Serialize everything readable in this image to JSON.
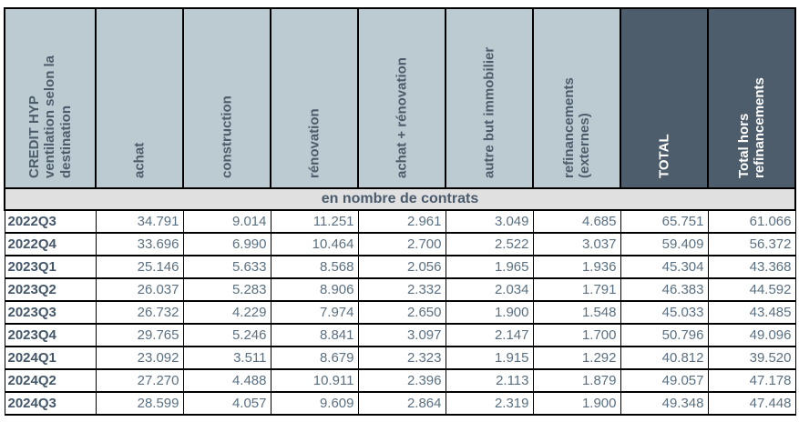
{
  "table": {
    "corner_header": "CREDIT HYP\nventilation selon la\ndestination",
    "columns": [
      {
        "label": "achat"
      },
      {
        "label": "construction"
      },
      {
        "label": "rénovation"
      },
      {
        "label": "achat + rénovation"
      },
      {
        "label": "autre but immobilier"
      },
      {
        "label": "refinancements\n(externes)"
      },
      {
        "label": "TOTAL"
      },
      {
        "label": "Total hors\nrefinancements"
      }
    ],
    "band": "en nombre de contrats",
    "rows": [
      {
        "label": "2022Q3",
        "values": [
          "34.791",
          "9.014",
          "11.251",
          "2.961",
          "3.049",
          "4.685",
          "65.751",
          "61.066"
        ]
      },
      {
        "label": "2022Q4",
        "values": [
          "33.696",
          "6.990",
          "10.464",
          "2.700",
          "2.522",
          "3.037",
          "59.409",
          "56.372"
        ]
      },
      {
        "label": "2023Q1",
        "values": [
          "25.146",
          "5.633",
          "8.568",
          "2.056",
          "1.965",
          "1.936",
          "45.304",
          "43.368"
        ]
      },
      {
        "label": "2023Q2",
        "values": [
          "26.037",
          "5.283",
          "8.906",
          "2.332",
          "2.034",
          "1.791",
          "46.383",
          "44.592"
        ]
      },
      {
        "label": "2023Q3",
        "values": [
          "26.732",
          "4.229",
          "7.974",
          "2.650",
          "1.900",
          "1.548",
          "45.033",
          "43.485"
        ]
      },
      {
        "label": "2023Q4",
        "values": [
          "29.765",
          "5.246",
          "8.841",
          "3.097",
          "2.147",
          "1.700",
          "50.796",
          "49.096"
        ]
      },
      {
        "label": "2024Q1",
        "values": [
          "23.092",
          "3.511",
          "8.679",
          "2.323",
          "1.915",
          "1.292",
          "40.812",
          "39.520"
        ]
      },
      {
        "label": "2024Q2",
        "values": [
          "27.270",
          "4.488",
          "10.911",
          "2.396",
          "2.113",
          "1.879",
          "49.057",
          "47.178"
        ]
      },
      {
        "label": "2024Q3",
        "values": [
          "28.599",
          "4.057",
          "9.609",
          "2.864",
          "2.319",
          "1.900",
          "49.348",
          "47.448"
        ]
      }
    ]
  },
  "colors": {
    "header_light_bg": "#bccbd2",
    "header_dark_bg": "#4e5d6b",
    "header_text": "#4e5d6b",
    "band_bg": "#e0e0e0",
    "band_text": "#4a5b6d",
    "row_label_text": "#44576a",
    "value_text": "#5a7082",
    "border_color": "#000000"
  },
  "chart_data": {
    "type": "table",
    "title": "CREDIT HYP ventilation selon la destination",
    "unit_label": "en nombre de contrats",
    "columns": [
      "achat",
      "construction",
      "rénovation",
      "achat + rénovation",
      "autre but immobilier",
      "refinancements (externes)",
      "TOTAL",
      "Total hors refinancements"
    ],
    "rows": [
      {
        "label": "2022Q3",
        "values": [
          34791,
          9014,
          11251,
          2961,
          3049,
          4685,
          65751,
          61066
        ]
      },
      {
        "label": "2022Q4",
        "values": [
          33696,
          6990,
          10464,
          2700,
          2522,
          3037,
          59409,
          56372
        ]
      },
      {
        "label": "2023Q1",
        "values": [
          25146,
          5633,
          8568,
          2056,
          1965,
          1936,
          45304,
          43368
        ]
      },
      {
        "label": "2023Q2",
        "values": [
          26037,
          5283,
          8906,
          2332,
          2034,
          1791,
          46383,
          44592
        ]
      },
      {
        "label": "2023Q3",
        "values": [
          26732,
          4229,
          7974,
          2650,
          1900,
          1548,
          45033,
          43485
        ]
      },
      {
        "label": "2023Q4",
        "values": [
          29765,
          5246,
          8841,
          3097,
          2147,
          1700,
          50796,
          49096
        ]
      },
      {
        "label": "2024Q1",
        "values": [
          23092,
          3511,
          8679,
          2323,
          1915,
          1292,
          40812,
          39520
        ]
      },
      {
        "label": "2024Q2",
        "values": [
          27270,
          4488,
          10911,
          2396,
          2113,
          1879,
          49057,
          47178
        ]
      },
      {
        "label": "2024Q3",
        "values": [
          28599,
          4057,
          9609,
          2864,
          2319,
          1900,
          49348,
          47448
        ]
      }
    ]
  }
}
